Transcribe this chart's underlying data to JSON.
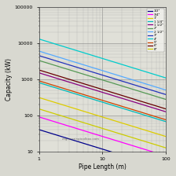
{
  "xlabel": "Pipe Length (m)",
  "ylabel": "Capacity (kW)",
  "watermark": "engineeringtoolbox.com",
  "xlim": [
    1,
    100
  ],
  "ylim": [
    10,
    100000
  ],
  "pipes": [
    {
      "label": "1/2\"",
      "color": "#00008B",
      "a": 1.58,
      "b": -0.54
    },
    {
      "label": "3/4\"",
      "color": "#FF00FF",
      "a": 1.95,
      "b": -0.54
    },
    {
      "label": "1\"",
      "color": "#CCCC00",
      "a": 2.5,
      "b": -0.54
    },
    {
      "label": "1 1/4\"",
      "color": "#00CCCC",
      "a": 2.86,
      "b": -0.54
    },
    {
      "label": "1 1/2\"",
      "color": "#880088",
      "a": 3.13,
      "b": -0.54
    },
    {
      "label": "2\"",
      "color": "#006600",
      "a": 3.5,
      "b": -0.54
    },
    {
      "label": "2 1/2\"",
      "color": "#00AAFF",
      "a": 3.76,
      "b": -0.54
    },
    {
      "label": "3\"",
      "color": "#3333CC",
      "a": 3.62,
      "b": -0.54
    },
    {
      "label": "4\"",
      "color": "#00CCCC",
      "a": 4.1,
      "b": -0.54
    },
    {
      "label": "5\"",
      "color": "#993300",
      "a": 2.96,
      "b": -0.54
    },
    {
      "label": "6\"",
      "color": "#660000",
      "a": 3.26,
      "b": -0.54
    },
    {
      "label": "8\"",
      "color": "#BBBB00",
      "a": 2.18,
      "b": -0.54
    }
  ],
  "bg_color": "#ffffff",
  "plot_area_color": "#e8e8e8",
  "grid_major_color": "#888888",
  "grid_minor_color": "#bbbbbb"
}
